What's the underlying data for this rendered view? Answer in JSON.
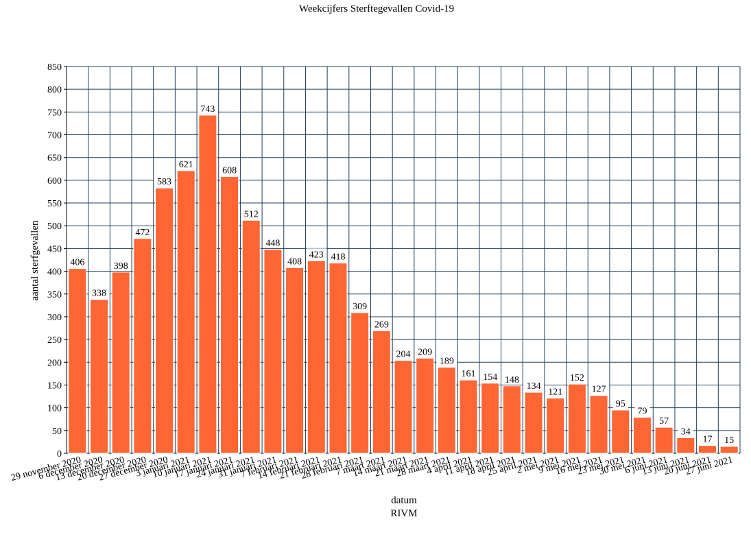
{
  "chart_data": {
    "type": "bar",
    "title": "Weekcijfers Sterftegevallen Covid-19",
    "xlabel": "datum",
    "ylabel": "aantal sterfgevallen",
    "source": "RIVM",
    "ylim": [
      0,
      850
    ],
    "yticks": [
      0,
      50,
      100,
      150,
      200,
      250,
      300,
      350,
      400,
      450,
      500,
      550,
      600,
      650,
      700,
      750,
      800,
      850
    ],
    "grid": true,
    "legend": "none",
    "bar_color": "#ff6633",
    "grid_color": "#1f3f5a",
    "categories": [
      "29 november 2020",
      "6 december 2020",
      "13 december 2020",
      "20 december 2020",
      "27 december 2020",
      "3 januari 2021",
      "10 januari 2021",
      "17 januari 2021",
      "24 januari 2021",
      "31 januari 2021",
      "7 februari 2021",
      "14 februari 2021",
      "21 februari 2021",
      "28 februari 2021",
      "7 maart 2021",
      "14 maart 2021",
      "21 maart 2021",
      "28 maart 2021",
      "4 april 2021",
      "11 april 2021",
      "18 april 2021",
      "25 april 2021",
      "2 mei 2021",
      "9 mei 2021",
      "16 mei 2021",
      "23 mei 2021",
      "30 mei 2021",
      "6 juni 2021",
      "13 juni 2021",
      "20 juni 2021",
      "27 juni 2021"
    ],
    "values": [
      406,
      338,
      398,
      472,
      583,
      621,
      743,
      608,
      512,
      448,
      408,
      423,
      418,
      309,
      269,
      204,
      209,
      189,
      161,
      154,
      148,
      134,
      121,
      152,
      127,
      95,
      79,
      57,
      34,
      17,
      15
    ]
  }
}
